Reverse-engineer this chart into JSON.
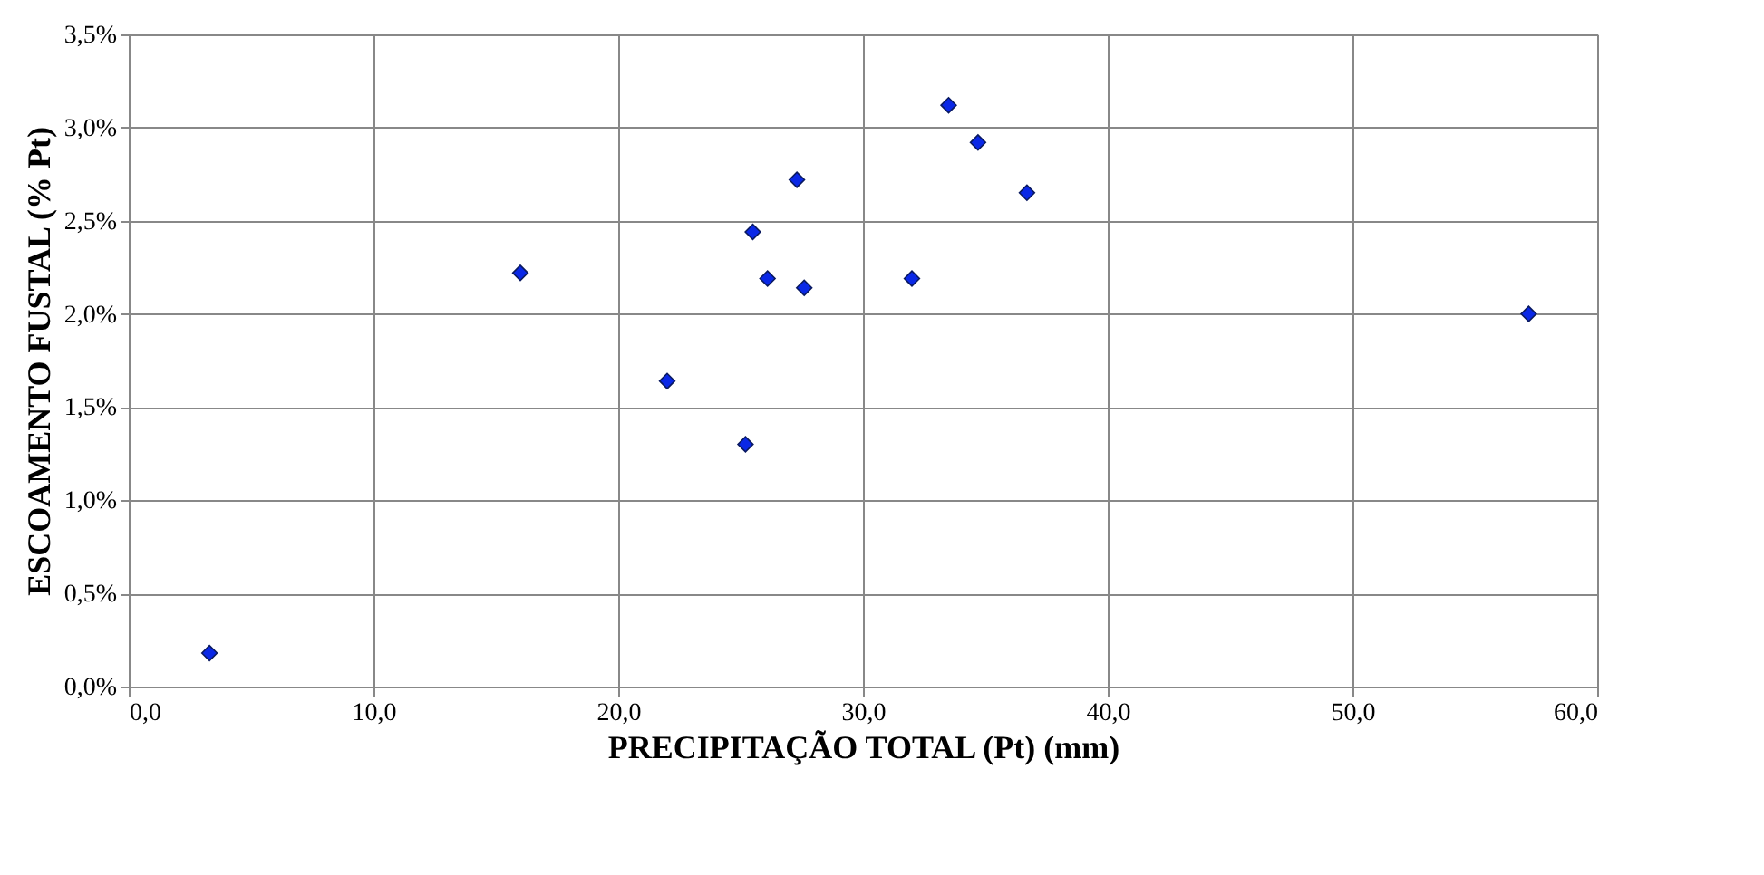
{
  "chart_data": {
    "type": "scatter",
    "xlabel": "PRECIPITAÇÃO TOTAL (Pt) (mm)",
    "ylabel": "ESCOAMENTO FUSTAL (% Pt)",
    "x": [
      3.3,
      16.0,
      22.0,
      25.2,
      25.5,
      26.1,
      27.3,
      27.6,
      32.0,
      33.5,
      34.7,
      36.7,
      57.2
    ],
    "series": [
      {
        "color": "#0a28e6",
        "values": [
          0.18,
          2.22,
          1.64,
          1.3,
          2.44,
          2.19,
          2.72,
          2.14,
          2.19,
          3.12,
          2.92,
          2.65,
          2.0
        ]
      }
    ],
    "xlim": [
      0,
      60
    ],
    "ylim": [
      0,
      3.5
    ],
    "xticks": [
      {
        "value": 0,
        "label": "0,0"
      },
      {
        "value": 10,
        "label": "10,0"
      },
      {
        "value": 20,
        "label": "20,0"
      },
      {
        "value": 30,
        "label": "30,0"
      },
      {
        "value": 40,
        "label": "40,0"
      },
      {
        "value": 50,
        "label": "50,0"
      },
      {
        "value": 60,
        "label": "60,0"
      }
    ],
    "yticks": [
      {
        "value": 0,
        "label": "0,0%"
      },
      {
        "value": 0.5,
        "label": "0,5%"
      },
      {
        "value": 1.0,
        "label": "1,0%"
      },
      {
        "value": 1.5,
        "label": "1,5%"
      },
      {
        "value": 2.0,
        "label": "2,0%"
      },
      {
        "value": 2.5,
        "label": "2,5%"
      },
      {
        "value": 3.0,
        "label": "3,0%"
      },
      {
        "value": 3.5,
        "label": "3,5%"
      }
    ],
    "grid": true,
    "marker": "diamond"
  }
}
